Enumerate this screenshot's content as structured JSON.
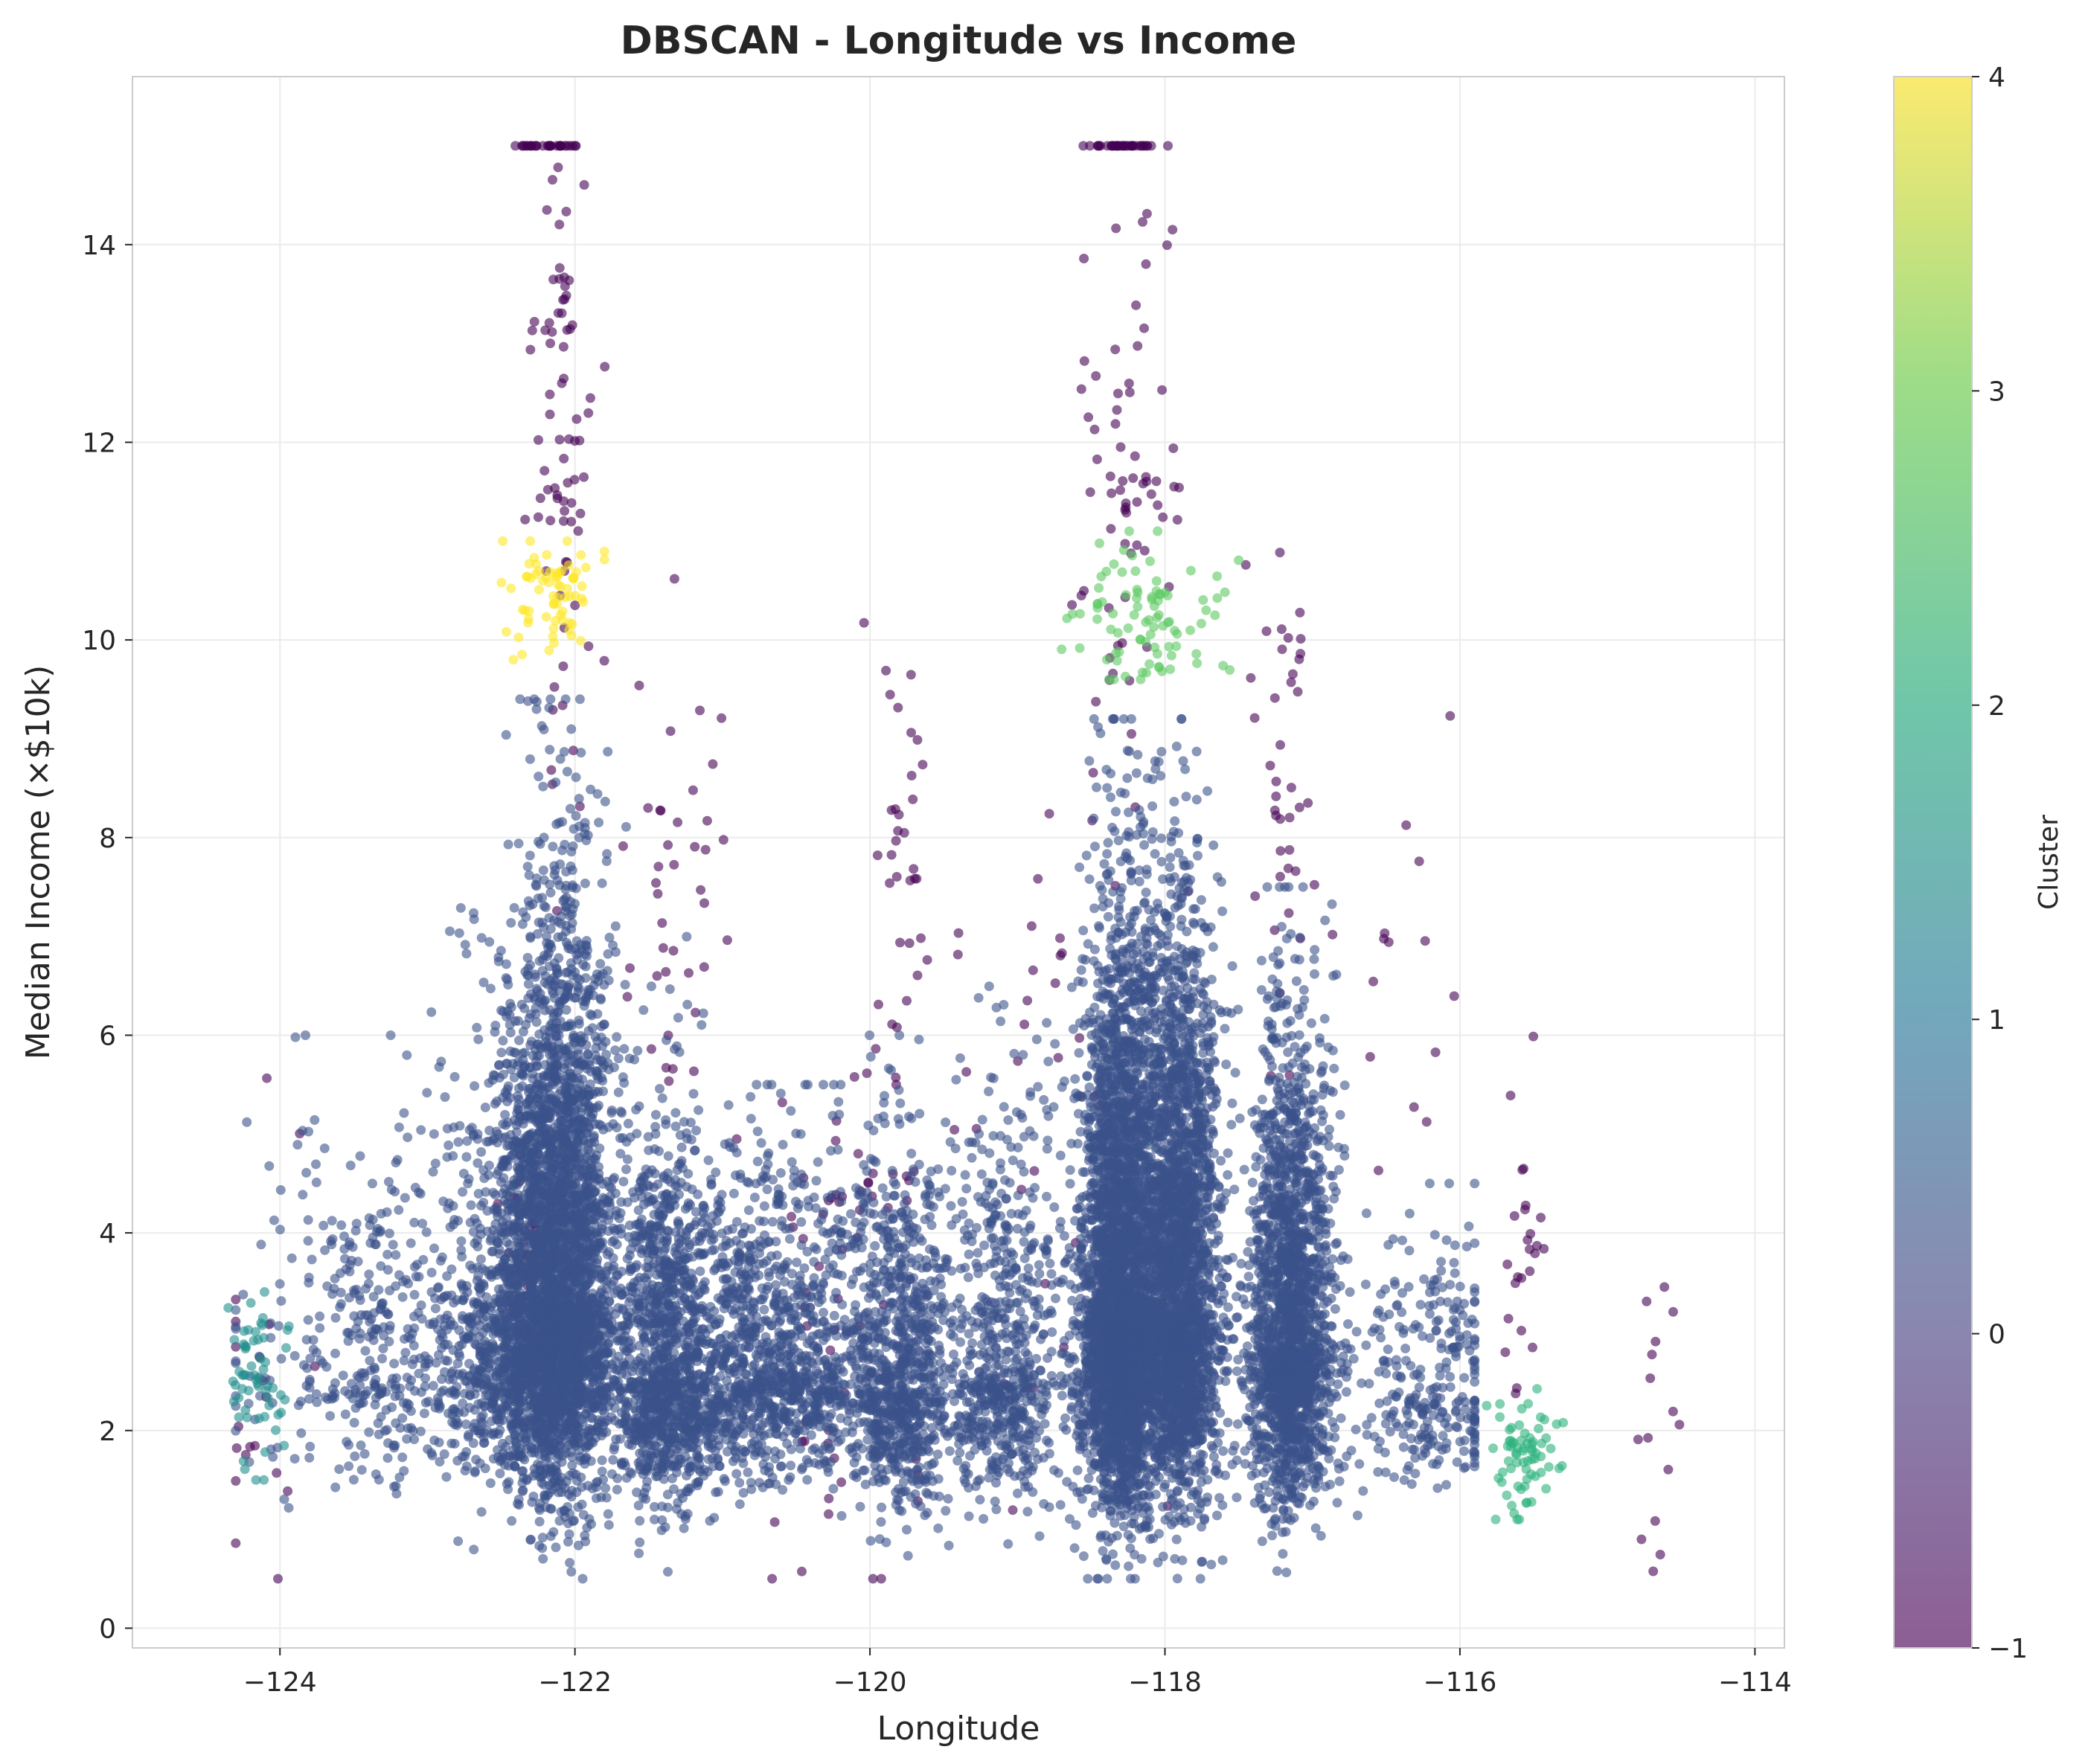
{
  "chart_data": {
    "type": "scatter",
    "title": "DBSCAN - Longitude vs Income",
    "xlabel": "Longitude",
    "ylabel": "Median Income (×$10k)",
    "xlim": [
      -125.0,
      -113.8
    ],
    "ylim": [
      -0.2,
      15.7
    ],
    "x_ticks": [
      -124,
      -122,
      -120,
      -118,
      -116,
      -114
    ],
    "x_tick_labels": [
      "−124",
      "−122",
      "−120",
      "−118",
      "−116",
      "−114"
    ],
    "y_ticks": [
      0,
      2,
      4,
      6,
      8,
      10,
      12,
      14
    ],
    "y_tick_labels": [
      "0",
      "2",
      "4",
      "6",
      "8",
      "10",
      "12",
      "14"
    ],
    "grid": true,
    "colormap": "viridis",
    "colorbar": {
      "label": "Cluster",
      "range": [
        -1,
        4
      ],
      "ticks": [
        -1,
        0,
        1,
        2,
        3,
        4
      ],
      "tick_labels": [
        "−1",
        "0",
        "1",
        "2",
        "3",
        "4"
      ]
    },
    "cluster_colors": {
      "-1": "#440154",
      "0": "#3b528b",
      "1": "#21908d",
      "2": "#2db27d",
      "3": "#5ec962",
      "4": "#fde725"
    },
    "point_alpha": 0.6,
    "series": [
      {
        "name": "-1",
        "approx_points": 650,
        "x_range": [
          -124.2,
          -114.3
        ],
        "y_range": [
          0.5,
          15.0
        ],
        "note_groups": [
          [
            -122.2,
            15.0
          ],
          [
            -118.3,
            15.0
          ],
          [
            -117.2,
            9.0
          ],
          [
            -119.9,
            6.5
          ],
          [
            -115.5,
            4.0
          ],
          [
            -114.6,
            2.2
          ]
        ]
      },
      {
        "name": "0",
        "approx_points": 18000,
        "x_range": [
          -124.3,
          -115.9
        ],
        "y_range": [
          0.5,
          9.5
        ],
        "density_centers": [
          [
            -122.1,
            3.8
          ],
          [
            -121.4,
            2.6
          ],
          [
            -120.6,
            2.6
          ],
          [
            -119.8,
            2.5
          ],
          [
            -119.1,
            2.6
          ],
          [
            -118.25,
            3.5
          ],
          [
            -117.9,
            3.6
          ],
          [
            -117.15,
            3.1
          ],
          [
            -116.2,
            2.4
          ]
        ]
      },
      {
        "name": "1",
        "approx_points": 60,
        "x_range": [
          -124.35,
          -123.7
        ],
        "y_range": [
          1.5,
          3.6
        ],
        "center": [
          -124.15,
          2.5
        ]
      },
      {
        "name": "2",
        "approx_points": 70,
        "x_range": [
          -116.0,
          -115.3
        ],
        "y_range": [
          1.1,
          2.5
        ],
        "center": [
          -115.55,
          1.8
        ]
      },
      {
        "name": "3",
        "approx_points": 90,
        "x_range": [
          -118.7,
          -117.5
        ],
        "y_range": [
          9.6,
          11.1
        ],
        "center": [
          -118.1,
          10.2
        ]
      },
      {
        "name": "4",
        "approx_points": 70,
        "x_range": [
          -122.6,
          -121.8
        ],
        "y_range": [
          9.8,
          11.0
        ],
        "center": [
          -122.2,
          10.4
        ]
      }
    ]
  }
}
